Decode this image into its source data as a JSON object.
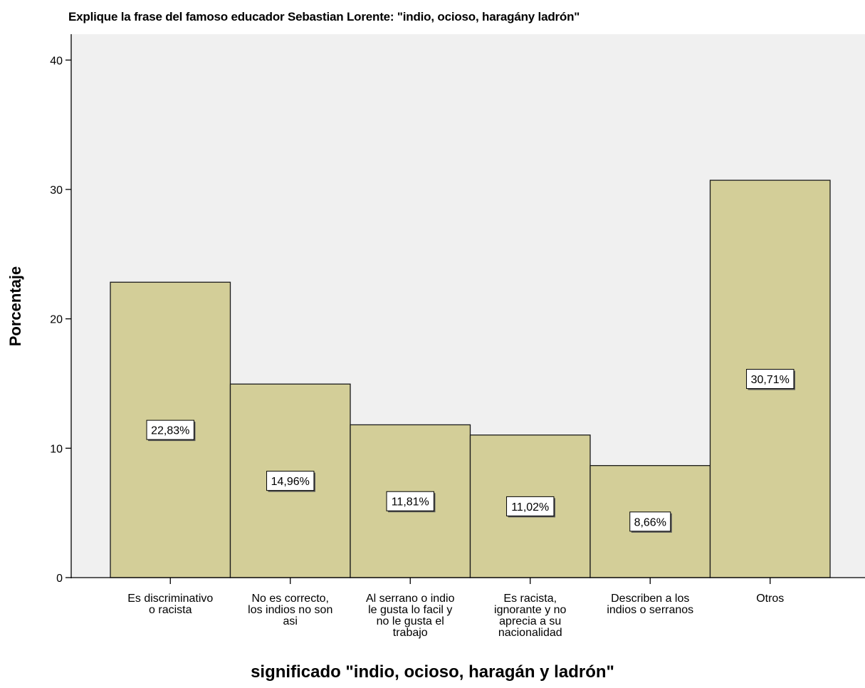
{
  "chart_data": {
    "type": "bar",
    "title": "Explique la frase del famoso educador Sebastian Lorente: \"indio, ocioso, haragány ladrón\"",
    "xlabel": "significado \"indio, ocioso, haragán y ladrón\"",
    "ylabel": "Porcentaje",
    "ylim": [
      0,
      40
    ],
    "yticks": [
      0,
      10,
      20,
      30,
      40
    ],
    "grid": false,
    "categories": [
      [
        "Es discriminativo",
        "o racista"
      ],
      [
        "No es correcto,",
        "los indios no son",
        "asi"
      ],
      [
        "Al serrano o indio",
        "le gusta lo facil y",
        "no le gusta el",
        "trabajo"
      ],
      [
        "Es racista,",
        "ignorante y no",
        "aprecia a su",
        "nacionalidad"
      ],
      [
        "Describen a los",
        "indios o serranos"
      ],
      [
        "Otros"
      ]
    ],
    "values": [
      22.83,
      14.96,
      11.81,
      11.02,
      8.66,
      30.71
    ],
    "data_labels": [
      "22,83%",
      "14,96%",
      "11,81%",
      "11,02%",
      "8,66%",
      "30,71%"
    ],
    "colors": {
      "bar_fill": "#d3ce98",
      "bar_stroke": "#1a1a1a",
      "plot_background": "#f0f0f0",
      "axis": "#000000"
    }
  }
}
